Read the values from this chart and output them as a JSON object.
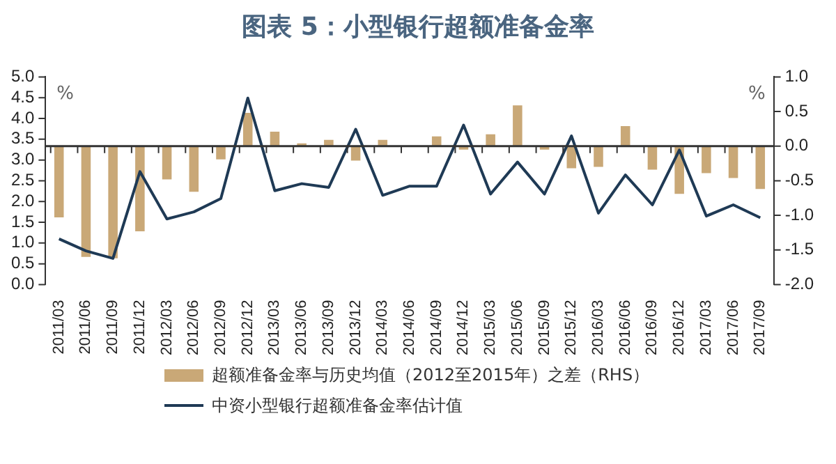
{
  "chart_data": {
    "type": "bar",
    "title": "图表 5：小型银行超额准备金率",
    "ylabel": "%",
    "y2label": "%",
    "categories": [
      "2011/03",
      "2011/06",
      "2011/09",
      "2011/12",
      "2012/03",
      "2012/06",
      "2012/09",
      "2012/12",
      "2013/03",
      "2013/06",
      "2013/09",
      "2013/12",
      "2014/03",
      "2014/06",
      "2014/09",
      "2014/12",
      "2015/03",
      "2015/06",
      "2015/09",
      "2015/12",
      "2016/03",
      "2016/06",
      "2016/09",
      "2016/12",
      "2017/03",
      "2017/06",
      "2017/09"
    ],
    "series": [
      {
        "name": "超额准备金率与历史均值（2012至2015年）之差（RHS）",
        "axis": "y2",
        "color": "#c9a877",
        "values": [
          -1.03,
          -1.6,
          -1.62,
          -1.23,
          -0.48,
          -0.66,
          -0.19,
          0.48,
          0.21,
          0.04,
          0.09,
          -0.21,
          0.09,
          null,
          0.14,
          -0.05,
          0.17,
          0.59,
          -0.05,
          -0.32,
          -0.3,
          0.29,
          -0.34,
          -0.69,
          -0.39,
          -0.46,
          -0.62
        ]
      },
      {
        "name": "中资小型银行超额准备金率估计值",
        "type": "line",
        "axis": "y",
        "color": "#1f3a55",
        "values": [
          1.1,
          0.81,
          0.63,
          2.72,
          1.58,
          1.75,
          2.07,
          4.49,
          2.26,
          2.43,
          2.34,
          3.74,
          2.15,
          2.37,
          2.37,
          3.84,
          2.18,
          2.95,
          2.18,
          3.58,
          1.72,
          2.64,
          1.92,
          3.24,
          1.65,
          1.92,
          1.61
        ]
      }
    ],
    "ylim": [
      0,
      5
    ],
    "yticks": [
      {
        "value": 0,
        "label": "0.0"
      },
      {
        "value": 0.5,
        "label": "0.5"
      },
      {
        "value": 1,
        "label": "1.0"
      },
      {
        "value": 1.5,
        "label": "1.5"
      },
      {
        "value": 2,
        "label": "2.0"
      },
      {
        "value": 2.5,
        "label": "2.5"
      },
      {
        "value": 3,
        "label": "3.0"
      },
      {
        "value": 3.5,
        "label": "3.5"
      },
      {
        "value": 4,
        "label": "4.0"
      },
      {
        "value": 4.5,
        "label": "4.5"
      },
      {
        "value": 5,
        "label": "5.0"
      }
    ],
    "y2lim": [
      -2,
      1
    ],
    "y2ticks": [
      {
        "value": -2,
        "label": "-2.0"
      },
      {
        "value": -1.5,
        "label": "-1.5"
      },
      {
        "value": -1,
        "label": "-1.0"
      },
      {
        "value": -0.5,
        "label": "-0.5"
      },
      {
        "value": 0,
        "label": "0.0"
      },
      {
        "value": 0.5,
        "label": "0.5"
      },
      {
        "value": 1,
        "label": "1.0"
      }
    ],
    "ref_lines": [
      {
        "axis": "y2",
        "value": 0,
        "color": "#333333"
      }
    ],
    "grid": false,
    "legend": "bottom",
    "marker": "none",
    "line_style": "solid"
  }
}
